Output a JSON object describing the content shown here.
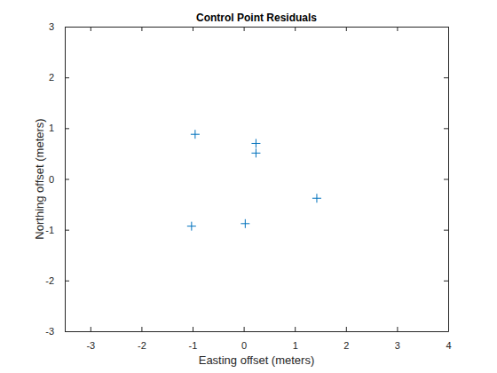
{
  "chart_data": {
    "type": "scatter",
    "title": "Control Point Residuals",
    "x_label": "Easting offset (meters)",
    "y_label": "Northing offset (meters)",
    "x": [
      -0.95,
      0.24,
      0.24,
      1.43,
      0.03,
      -1.02
    ],
    "values": [
      0.88,
      0.7,
      0.51,
      -0.38,
      -0.88,
      -0.93
    ],
    "color": "#0072bd",
    "marker": "plus",
    "xlim": [
      -3.5,
      4
    ],
    "xticks": [
      -3,
      -2,
      -1,
      0,
      1,
      2,
      3,
      4
    ],
    "ylim": [
      -3,
      3
    ],
    "yticks": [
      -3,
      -2,
      -1,
      0,
      1,
      2,
      3
    ]
  }
}
